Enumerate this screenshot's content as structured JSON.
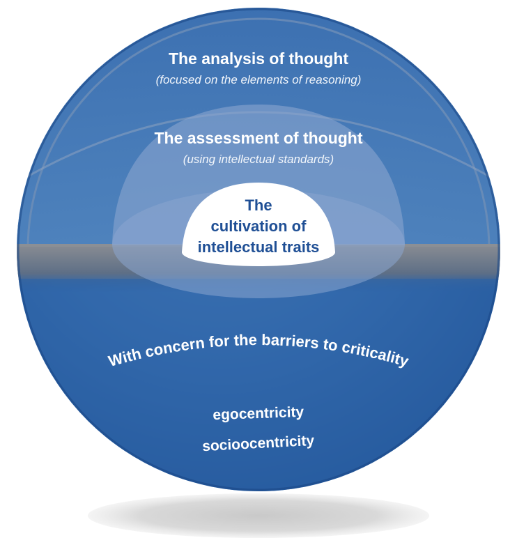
{
  "colors": {
    "sphere_outer": "#2b63a6",
    "sphere_light": "#4d82bd",
    "sphere_dark": "#1c4c8f",
    "inner_dome": "#7f9ccb",
    "core_text": "#1f4f95",
    "equator": "#7d8189",
    "shadow": "#d4d4d4"
  },
  "layers": {
    "analysis": {
      "title": "The analysis of thought",
      "subtitle": "(focused on the elements of reasoning)"
    },
    "assessment": {
      "title": "The assessment of thought",
      "subtitle": "(using intellectual standards)"
    },
    "core": {
      "line1": "The",
      "line2": "cultivation of",
      "line3": "intellectual traits"
    }
  },
  "barriers": {
    "heading": "With concern for the barriers to criticality",
    "items": [
      "egocentricity",
      "socioocentricity"
    ]
  }
}
